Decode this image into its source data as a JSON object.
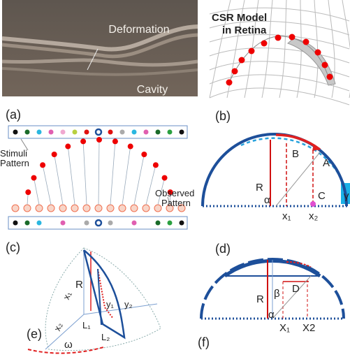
{
  "panels": [
    {
      "label": "(a)",
      "texts": [
        "Deformation",
        "Cavity"
      ]
    },
    {
      "label": "(b)",
      "texts": [
        "CSR Model",
        "in Retina"
      ]
    },
    {
      "label": "(c)",
      "texts": [
        "Stimuli",
        "Pattern",
        "Observed",
        "Pattern"
      ]
    },
    {
      "label": "(d)",
      "texts": [
        "B",
        "A",
        "R",
        "C",
        "α",
        "x₁",
        "x₂",
        "γ"
      ]
    },
    {
      "label": "(e)",
      "texts": [
        "R",
        "x₁",
        "x₂",
        "L₁",
        "L₂",
        "y₁",
        "y₂",
        "ω"
      ]
    },
    {
      "label": "(f)",
      "texts": [
        "R",
        "β",
        "D",
        "α",
        "X₁",
        "X2"
      ]
    }
  ]
}
